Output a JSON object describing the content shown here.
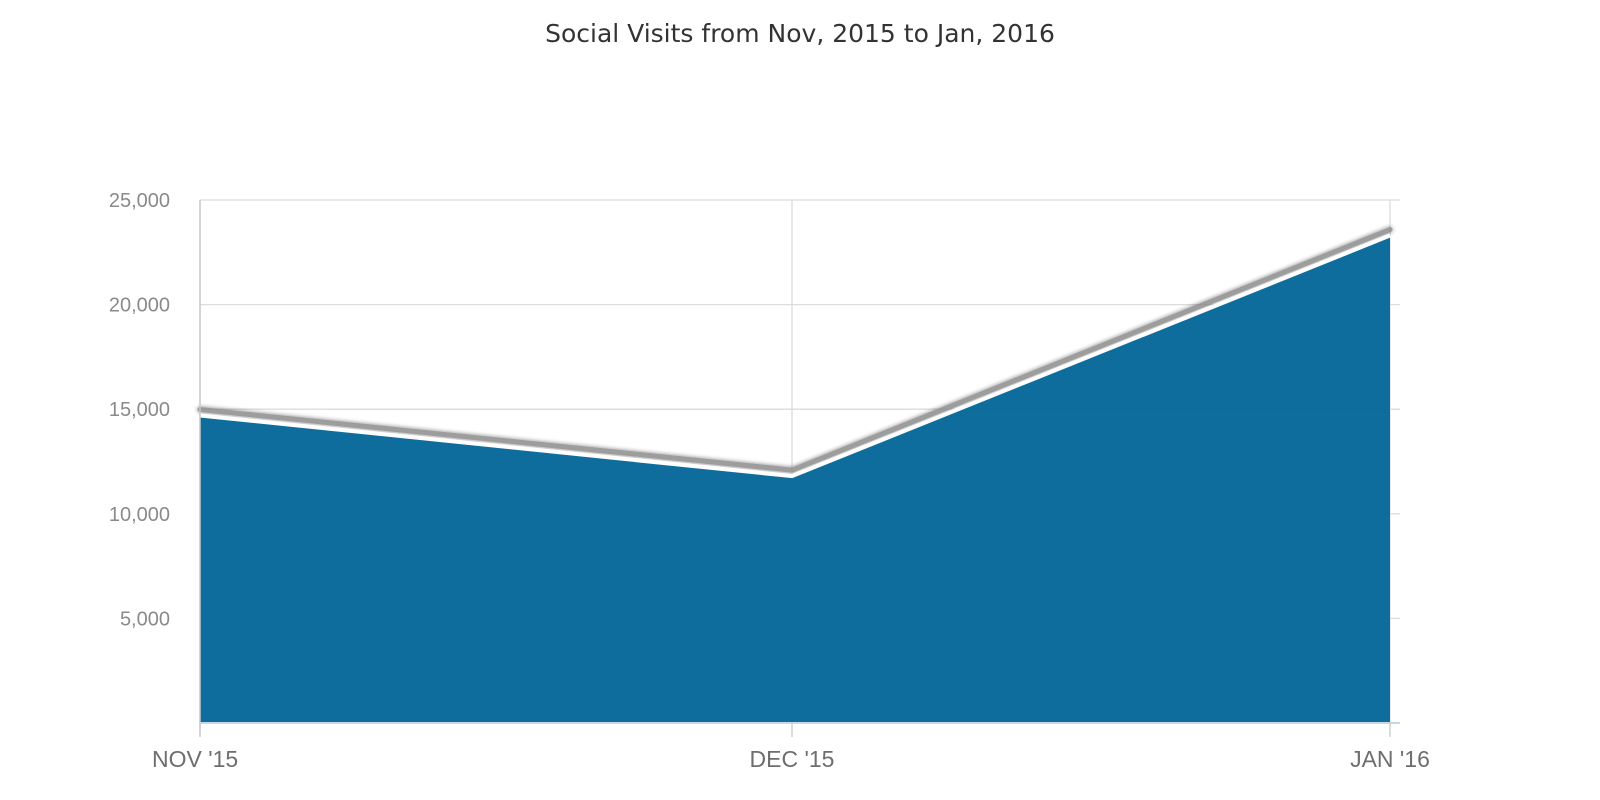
{
  "chart_data": {
    "type": "area",
    "title": "Social Visits from Nov, 2015 to Jan, 2016",
    "xlabel": "",
    "ylabel": "",
    "categories": [
      "NOV '15",
      "DEC '15",
      "JAN '16"
    ],
    "series": [
      {
        "name": "Social Visits",
        "values": [
          14700,
          11800,
          23300
        ],
        "color": "#07689a"
      }
    ],
    "ylim": [
      0,
      25000
    ],
    "y_ticks": [
      5000,
      10000,
      15000,
      20000,
      25000
    ],
    "y_tick_labels": [
      "5,000",
      "10,000",
      "15,000",
      "20,000",
      "25,000"
    ],
    "grid": true,
    "legend": "none"
  }
}
